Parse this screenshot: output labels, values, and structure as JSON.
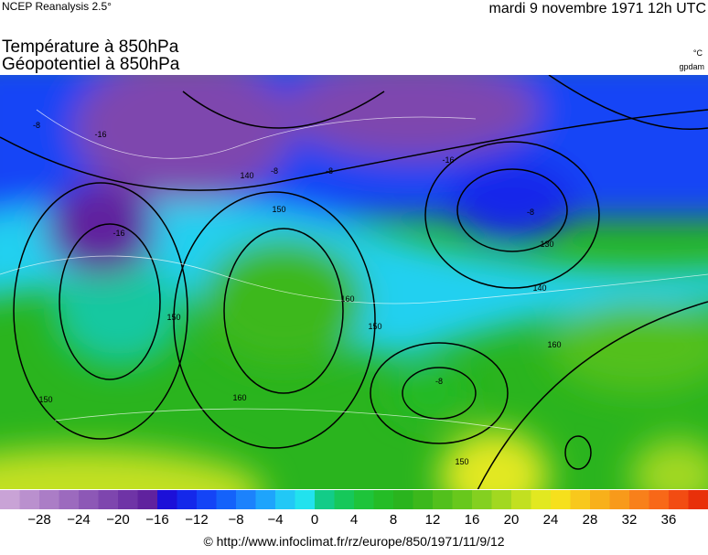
{
  "header": {
    "source": "NCEP Reanalysis 2.5°",
    "date": "mardi 9 novembre 1971 12h UTC",
    "title_line1": "Température à 850hPa",
    "title_line2": "Géopotentiel à 850hPa",
    "unit_temperature": "°C",
    "unit_geopotential": "gpdam"
  },
  "map": {
    "contour_labels": [
      "-16",
      "-16",
      "-16",
      "-8",
      "-8",
      "-8",
      "-8",
      "-8",
      "140",
      "150",
      "150",
      "160",
      "160",
      "130",
      "140",
      "160",
      "150",
      "150",
      "150"
    ]
  },
  "colorbar": {
    "range": [
      -32,
      40
    ],
    "colors": [
      "#c9a3d6",
      "#ba90ce",
      "#ab7dc6",
      "#9c6abe",
      "#8d58b6",
      "#7e46ae",
      "#6f34a6",
      "#60229e",
      "#1c10d8",
      "#1428ea",
      "#1444f6",
      "#1462fa",
      "#1c82fc",
      "#1ea4fc",
      "#22c8f6",
      "#22e2ee",
      "#12cc88",
      "#16c85a",
      "#1ec43a",
      "#24bc26",
      "#2ab41e",
      "#3cb81c",
      "#52c01c",
      "#68c81c",
      "#84d020",
      "#a2d820",
      "#c2e020",
      "#e2e820",
      "#f6e01c",
      "#f8c81c",
      "#f8b01a",
      "#f89a1a",
      "#f8801a",
      "#f86818",
      "#f24c12",
      "#e8300a"
    ],
    "ticks": [
      {
        "value": -28,
        "label": "−28"
      },
      {
        "value": -24,
        "label": "−24"
      },
      {
        "value": -20,
        "label": "−20"
      },
      {
        "value": -16,
        "label": "−16"
      },
      {
        "value": -12,
        "label": "−12"
      },
      {
        "value": -8,
        "label": "−8"
      },
      {
        "value": -4,
        "label": "−4"
      },
      0,
      4,
      8,
      12,
      16,
      20,
      24,
      28,
      32,
      36
    ]
  },
  "footer": {
    "url": "© http://www.infoclimat.fr/rz/europe/850/1971/11/9/12"
  }
}
